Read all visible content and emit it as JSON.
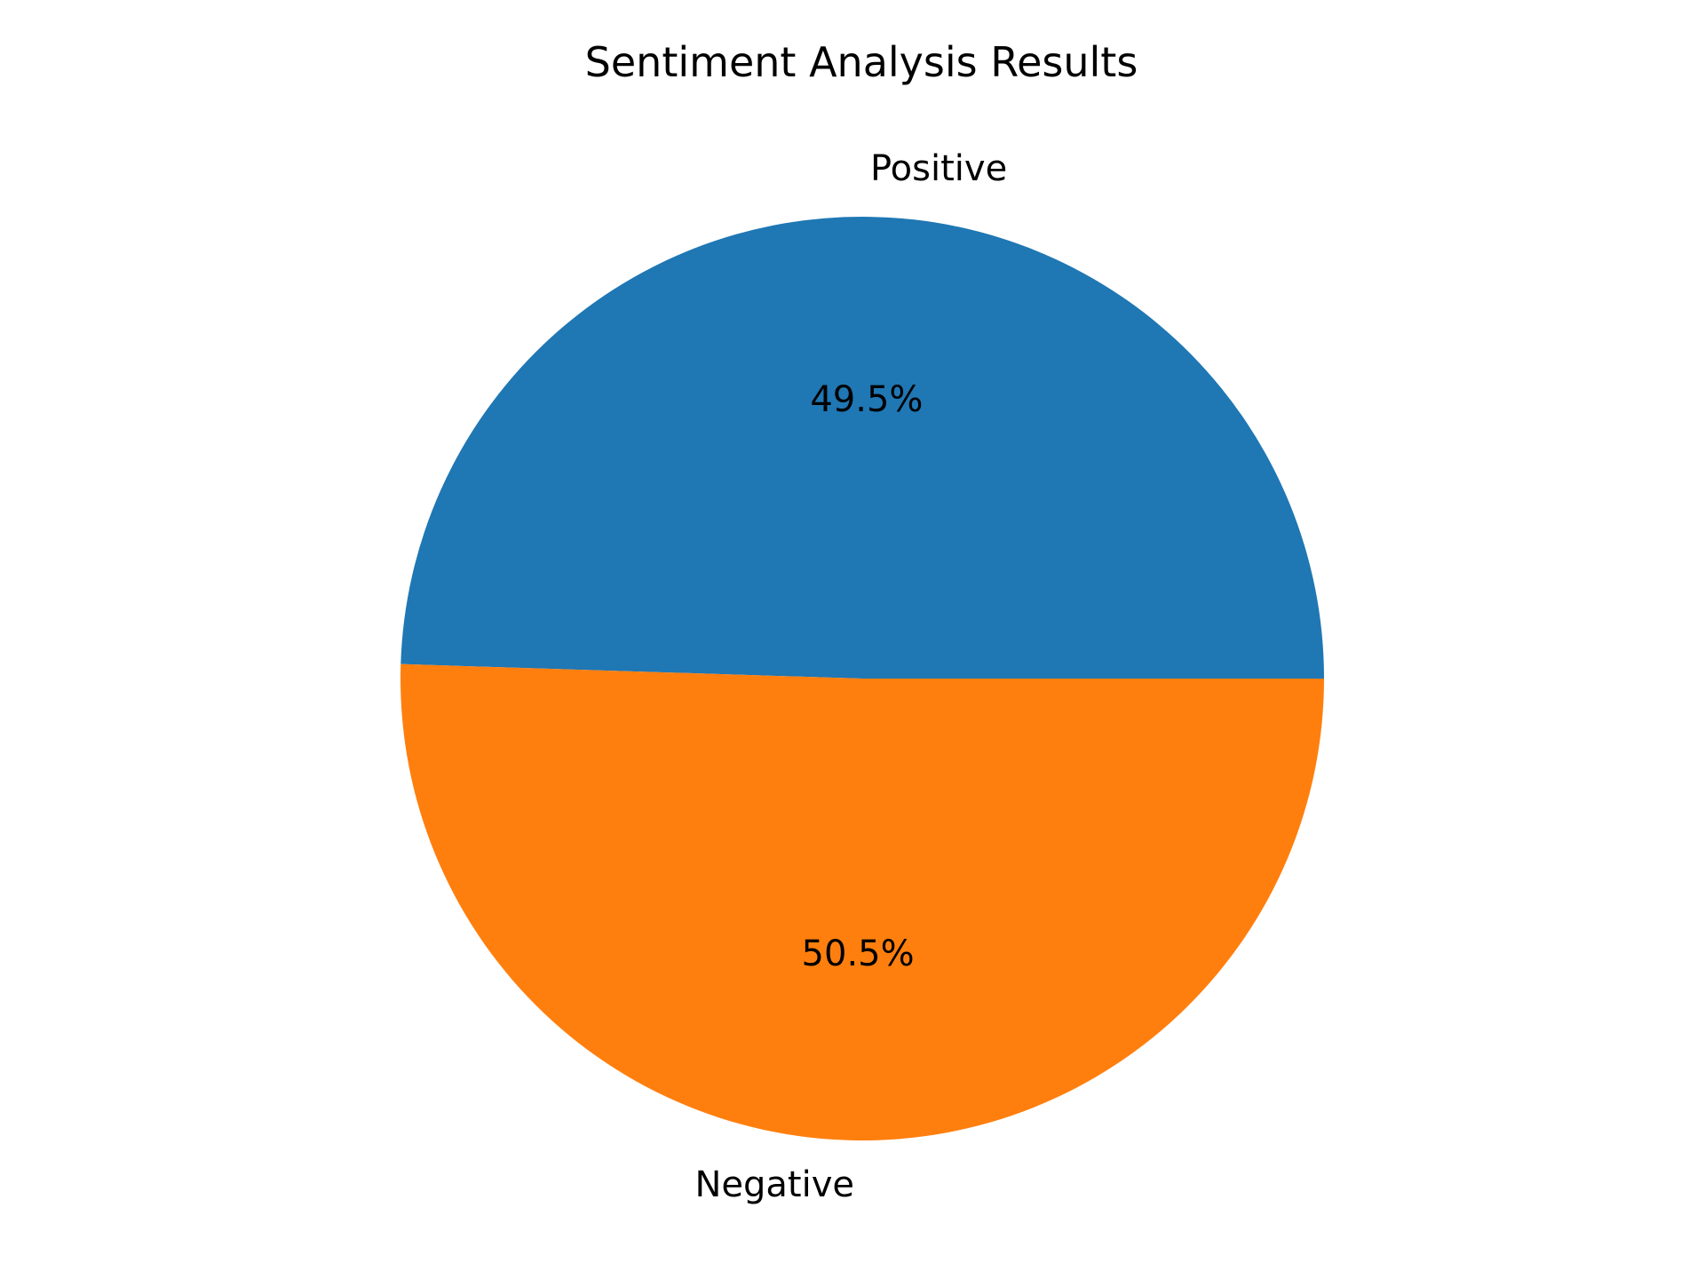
{
  "chart_data": {
    "type": "pie",
    "title": "Sentiment Analysis Results",
    "start_angle_deg": 0,
    "direction": "counterclockwise",
    "slices": [
      {
        "label": "Positive",
        "value": 49.5,
        "pct_label": "49.5%",
        "color": "#1f77b4"
      },
      {
        "label": "Negative",
        "value": 50.5,
        "pct_label": "50.5%",
        "color": "#ff7f0e"
      }
    ],
    "legend": "none"
  }
}
